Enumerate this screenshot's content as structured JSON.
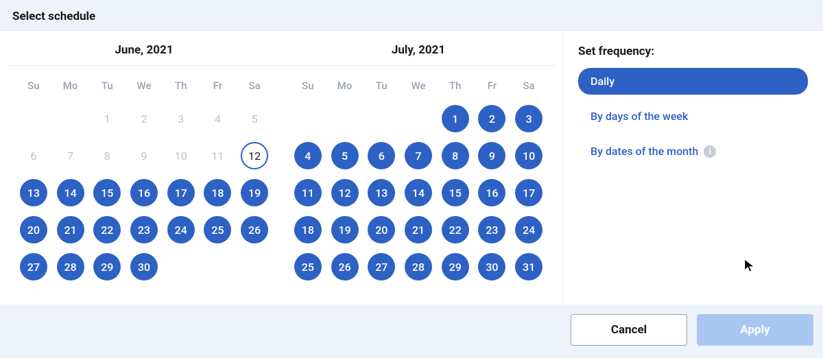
{
  "header": {
    "title": "Select schedule"
  },
  "weekdays": [
    "Su",
    "Mo",
    "Tu",
    "We",
    "Th",
    "Fr",
    "Sa"
  ],
  "months": [
    {
      "title": "June, 2021",
      "weeks": [
        [
          {
            "n": "",
            "state": "blank"
          },
          {
            "n": "",
            "state": "blank"
          },
          {
            "n": "1",
            "state": "disabled"
          },
          {
            "n": "2",
            "state": "disabled"
          },
          {
            "n": "3",
            "state": "disabled"
          },
          {
            "n": "4",
            "state": "disabled"
          },
          {
            "n": "5",
            "state": "disabled"
          }
        ],
        [
          {
            "n": "6",
            "state": "disabled"
          },
          {
            "n": "7",
            "state": "disabled"
          },
          {
            "n": "8",
            "state": "disabled"
          },
          {
            "n": "9",
            "state": "disabled"
          },
          {
            "n": "10",
            "state": "disabled"
          },
          {
            "n": "11",
            "state": "disabled"
          },
          {
            "n": "12",
            "state": "outlined"
          }
        ],
        [
          {
            "n": "13",
            "state": "selected"
          },
          {
            "n": "14",
            "state": "selected"
          },
          {
            "n": "15",
            "state": "selected"
          },
          {
            "n": "16",
            "state": "selected"
          },
          {
            "n": "17",
            "state": "selected"
          },
          {
            "n": "18",
            "state": "selected"
          },
          {
            "n": "19",
            "state": "selected"
          }
        ],
        [
          {
            "n": "20",
            "state": "selected"
          },
          {
            "n": "21",
            "state": "selected"
          },
          {
            "n": "22",
            "state": "selected"
          },
          {
            "n": "23",
            "state": "selected"
          },
          {
            "n": "24",
            "state": "selected"
          },
          {
            "n": "25",
            "state": "selected"
          },
          {
            "n": "26",
            "state": "selected"
          }
        ],
        [
          {
            "n": "27",
            "state": "selected"
          },
          {
            "n": "28",
            "state": "selected"
          },
          {
            "n": "29",
            "state": "selected"
          },
          {
            "n": "30",
            "state": "selected"
          },
          {
            "n": "",
            "state": "blank"
          },
          {
            "n": "",
            "state": "blank"
          },
          {
            "n": "",
            "state": "blank"
          }
        ]
      ]
    },
    {
      "title": "July, 2021",
      "weeks": [
        [
          {
            "n": "",
            "state": "blank"
          },
          {
            "n": "",
            "state": "blank"
          },
          {
            "n": "",
            "state": "blank"
          },
          {
            "n": "",
            "state": "blank"
          },
          {
            "n": "1",
            "state": "selected"
          },
          {
            "n": "2",
            "state": "selected"
          },
          {
            "n": "3",
            "state": "selected"
          }
        ],
        [
          {
            "n": "4",
            "state": "selected"
          },
          {
            "n": "5",
            "state": "selected"
          },
          {
            "n": "6",
            "state": "selected"
          },
          {
            "n": "7",
            "state": "selected"
          },
          {
            "n": "8",
            "state": "selected"
          },
          {
            "n": "9",
            "state": "selected"
          },
          {
            "n": "10",
            "state": "selected"
          }
        ],
        [
          {
            "n": "11",
            "state": "selected"
          },
          {
            "n": "12",
            "state": "selected"
          },
          {
            "n": "13",
            "state": "selected"
          },
          {
            "n": "14",
            "state": "selected"
          },
          {
            "n": "15",
            "state": "selected"
          },
          {
            "n": "16",
            "state": "selected"
          },
          {
            "n": "17",
            "state": "selected"
          }
        ],
        [
          {
            "n": "18",
            "state": "selected"
          },
          {
            "n": "19",
            "state": "selected"
          },
          {
            "n": "20",
            "state": "selected"
          },
          {
            "n": "21",
            "state": "selected"
          },
          {
            "n": "22",
            "state": "selected"
          },
          {
            "n": "23",
            "state": "selected"
          },
          {
            "n": "24",
            "state": "selected"
          }
        ],
        [
          {
            "n": "25",
            "state": "selected"
          },
          {
            "n": "26",
            "state": "selected"
          },
          {
            "n": "27",
            "state": "selected"
          },
          {
            "n": "28",
            "state": "selected"
          },
          {
            "n": "29",
            "state": "selected"
          },
          {
            "n": "30",
            "state": "selected"
          },
          {
            "n": "31",
            "state": "selected"
          }
        ]
      ]
    }
  ],
  "frequency": {
    "title": "Set frequency:",
    "options": [
      {
        "label": "Daily",
        "active": true,
        "info": false
      },
      {
        "label": "By days of the week",
        "active": false,
        "info": false
      },
      {
        "label": "By dates of the month",
        "active": false,
        "info": true
      }
    ]
  },
  "footer": {
    "cancel": "Cancel",
    "apply": "Apply"
  },
  "colors": {
    "accent": "#2d61c3",
    "accent_disabled": "#a9c6f1",
    "text": "#1a1a1a",
    "muted": "#9aa3b2",
    "page_bg": "#eef2f9",
    "panel_bg": "#ffffff",
    "border": "#e4e8f0"
  }
}
